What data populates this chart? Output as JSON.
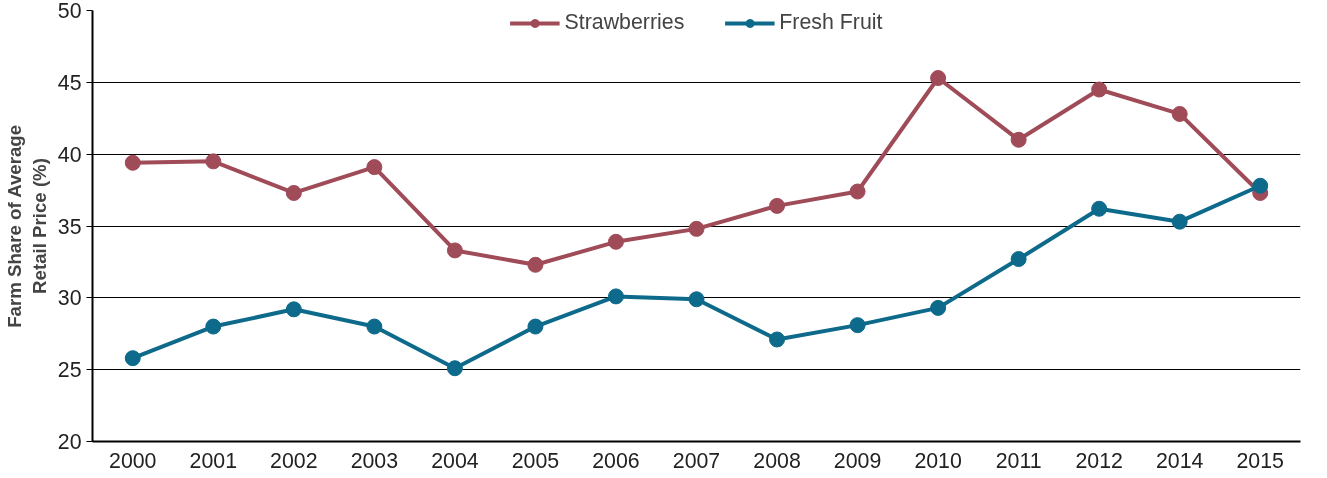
{
  "chart_data": {
    "type": "line",
    "ylabel": "Farm Share of Average Retail Price (%)",
    "categories": [
      "2000",
      "2001",
      "2002",
      "2003",
      "2004",
      "2005",
      "2006",
      "2007",
      "2008",
      "2009",
      "2010",
      "2011",
      "2012",
      "2014",
      "2015"
    ],
    "series": [
      {
        "name": "Strawberries",
        "color": "#a04b58",
        "values": [
          39.4,
          39.5,
          37.3,
          39.1,
          33.3,
          32.3,
          33.9,
          34.8,
          36.4,
          37.4,
          45.3,
          41.0,
          44.5,
          42.8,
          37.3
        ]
      },
      {
        "name": "Fresh Fruit",
        "color": "#0d6a8a",
        "values": [
          25.8,
          28.0,
          29.2,
          28.0,
          25.1,
          28.0,
          30.1,
          29.9,
          27.1,
          28.1,
          29.3,
          32.7,
          36.2,
          35.3,
          37.8
        ]
      }
    ],
    "ylim": [
      20,
      50
    ],
    "yticks": [
      20,
      25,
      30,
      35,
      40,
      45,
      50
    ],
    "grid": "y",
    "legend": "top",
    "marker": "circle",
    "line_style": "solid"
  }
}
